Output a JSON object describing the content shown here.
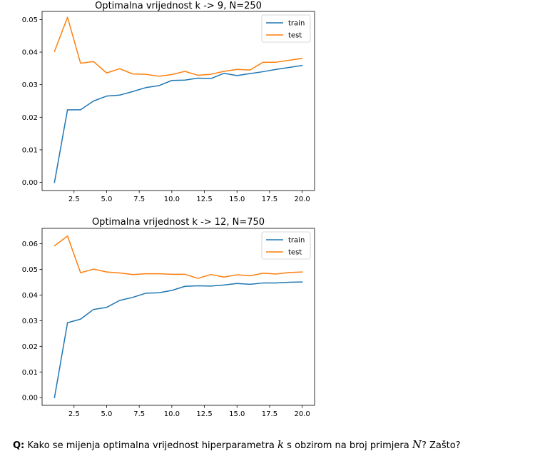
{
  "chart_data": [
    {
      "type": "line",
      "title": "Optimalna vrijednost k -> 9, N=250",
      "xlabel": "",
      "ylabel": "",
      "x": [
        1,
        2,
        3,
        4,
        5,
        6,
        7,
        8,
        9,
        10,
        11,
        12,
        13,
        14,
        15,
        16,
        17,
        18,
        19,
        20
      ],
      "xlim": [
        0.05,
        20.95
      ],
      "ylim": [
        -0.0025,
        0.0525
      ],
      "xticks": [
        2.5,
        5.0,
        7.5,
        10.0,
        12.5,
        15.0,
        17.5,
        20.0
      ],
      "xtick_labels": [
        "2.5",
        "5.0",
        "7.5",
        "10.0",
        "12.5",
        "15.0",
        "17.5",
        "20.0"
      ],
      "yticks": [
        0.0,
        0.01,
        0.02,
        0.03,
        0.04,
        0.05
      ],
      "ytick_labels": [
        "0.00",
        "0.01",
        "0.02",
        "0.03",
        "0.04",
        "0.05"
      ],
      "grid": false,
      "legend_position": "top-right",
      "series": [
        {
          "name": "train",
          "color": "#1f77b4",
          "values": [
            0.0,
            0.0223,
            0.0223,
            0.025,
            0.0265,
            0.0268,
            0.0279,
            0.0291,
            0.0297,
            0.0313,
            0.0314,
            0.032,
            0.0319,
            0.0335,
            0.0328,
            0.0334,
            0.034,
            0.0347,
            0.0353,
            0.0359
          ]
        },
        {
          "name": "test",
          "color": "#ff7f0e",
          "values": [
            0.0402,
            0.0507,
            0.0366,
            0.0371,
            0.0336,
            0.0349,
            0.0333,
            0.0332,
            0.0326,
            0.0331,
            0.0341,
            0.0329,
            0.0332,
            0.0341,
            0.0347,
            0.0345,
            0.0369,
            0.0369,
            0.0375,
            0.0381
          ]
        }
      ]
    },
    {
      "type": "line",
      "title": "Optimalna vrijednost k -> 12, N=750",
      "xlabel": "",
      "ylabel": "",
      "x": [
        1,
        2,
        3,
        4,
        5,
        6,
        7,
        8,
        9,
        10,
        11,
        12,
        13,
        14,
        15,
        16,
        17,
        18,
        19,
        20
      ],
      "xlim": [
        0.05,
        20.95
      ],
      "ylim": [
        -0.003,
        0.066
      ],
      "xticks": [
        2.5,
        5.0,
        7.5,
        10.0,
        12.5,
        15.0,
        17.5,
        20.0
      ],
      "xtick_labels": [
        "2.5",
        "5.0",
        "7.5",
        "10.0",
        "12.5",
        "15.0",
        "17.5",
        "20.0"
      ],
      "yticks": [
        0.0,
        0.01,
        0.02,
        0.03,
        0.04,
        0.05,
        0.06
      ],
      "ytick_labels": [
        "0.00",
        "0.01",
        "0.02",
        "0.03",
        "0.04",
        "0.05",
        "0.06"
      ],
      "grid": false,
      "legend_position": "top-right",
      "series": [
        {
          "name": "train",
          "color": "#1f77b4",
          "values": [
            0.0,
            0.0292,
            0.0306,
            0.0344,
            0.0352,
            0.0379,
            0.0391,
            0.0407,
            0.0409,
            0.0418,
            0.0434,
            0.0436,
            0.0435,
            0.0439,
            0.0445,
            0.0442,
            0.0447,
            0.0447,
            0.045,
            0.0451
          ]
        },
        {
          "name": "test",
          "color": "#ff7f0e",
          "values": [
            0.0592,
            0.063,
            0.0487,
            0.0501,
            0.049,
            0.0486,
            0.048,
            0.0483,
            0.0483,
            0.0481,
            0.0481,
            0.0465,
            0.048,
            0.047,
            0.0479,
            0.0475,
            0.0485,
            0.0482,
            0.0488,
            0.049
          ]
        }
      ]
    }
  ],
  "question": {
    "label": "Q:",
    "text_1": "Kako se mijenja optimalna vrijednost hiperparametra",
    "var_k": "k",
    "text_2": "s obzirom na broj primjera",
    "var_n": "N",
    "text_3": "? Zašto?"
  }
}
